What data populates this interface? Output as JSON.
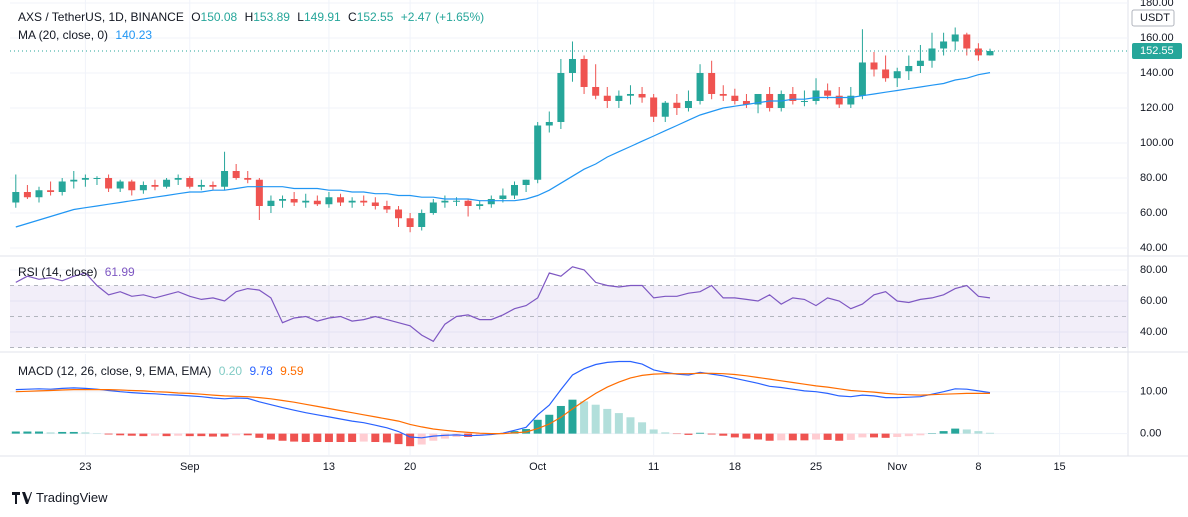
{
  "chart_data": [
    {
      "type": "candlestick",
      "title": "AXS / TetherUS, 1D, BINANCE",
      "unit": "USDT",
      "ohlc_labels": [
        "O",
        "H",
        "L",
        "C"
      ],
      "change": {
        "value": 2.47,
        "label": "+2.47"
      },
      "change_percent": {
        "value": 1.65,
        "label": "(+1.65%)"
      },
      "colors": {
        "up": "#26a69a",
        "down": "#ef5350"
      },
      "open": [
        66,
        72,
        69,
        73,
        72,
        78,
        79,
        80,
        80,
        74,
        78,
        73,
        76,
        75,
        79,
        80,
        75,
        76,
        75,
        84,
        80,
        79,
        64,
        67,
        68,
        66,
        67,
        65,
        69,
        66,
        67,
        66,
        64,
        62,
        57,
        52,
        60,
        66,
        67,
        67,
        64,
        65,
        68,
        70,
        76,
        79,
        110,
        112,
        140,
        148,
        132,
        127,
        124,
        127,
        128,
        126,
        115,
        123,
        120,
        124,
        140,
        128,
        127,
        124,
        122,
        128,
        120,
        128,
        124,
        124,
        130,
        127,
        122,
        127,
        146,
        142,
        137,
        141,
        144,
        147,
        154,
        158,
        162,
        154,
        150.08
      ],
      "high": [
        82,
        76,
        75,
        78,
        80,
        84,
        82,
        81,
        82,
        79,
        79,
        78,
        79,
        80,
        82,
        81,
        79,
        78,
        95,
        88,
        84,
        80,
        70,
        70,
        72,
        71,
        70,
        72,
        71,
        69,
        70,
        69,
        67,
        64,
        60,
        62,
        68,
        70,
        69,
        68,
        67,
        70,
        74,
        78,
        79,
        112,
        118,
        148,
        158,
        150,
        145,
        132,
        130,
        133,
        132,
        128,
        124,
        128,
        130,
        145,
        147,
        133,
        131,
        128,
        128,
        132,
        130,
        132,
        130,
        137,
        134,
        132,
        132,
        165,
        152,
        150,
        143,
        150,
        156,
        163,
        163,
        166,
        163,
        157,
        153.89
      ],
      "low": [
        63,
        68,
        66,
        70,
        70,
        74,
        75,
        76,
        72,
        72,
        70,
        71,
        73,
        74,
        76,
        74,
        73,
        73,
        73,
        79,
        77,
        56,
        60,
        63,
        64,
        63,
        64,
        63,
        64,
        63,
        64,
        62,
        60,
        52,
        49,
        50,
        59,
        63,
        64,
        58,
        62,
        63,
        66,
        68,
        72,
        77,
        106,
        108,
        135,
        128,
        125,
        120,
        120,
        122,
        123,
        112,
        112,
        116,
        118,
        122,
        125,
        124,
        122,
        120,
        117,
        118,
        118,
        122,
        121,
        122,
        125,
        120,
        120,
        125,
        138,
        135,
        132,
        136,
        140,
        143,
        150,
        153,
        150,
        147,
        149.91
      ],
      "close": [
        72,
        69,
        73,
        72,
        78,
        79,
        80,
        80,
        74,
        78,
        73,
        76,
        75,
        79,
        80,
        75,
        76,
        75,
        84,
        80,
        79,
        64,
        67,
        68,
        66,
        67,
        65,
        69,
        66,
        67,
        66,
        64,
        62,
        57,
        52,
        60,
        66,
        67,
        67,
        64,
        65,
        68,
        70,
        76,
        79,
        110,
        112,
        140,
        148,
        132,
        127,
        124,
        127,
        128,
        126,
        115,
        123,
        120,
        124,
        140,
        128,
        127,
        124,
        122,
        128,
        120,
        128,
        124,
        124,
        130,
        127,
        122,
        127,
        146,
        142,
        137,
        141,
        144,
        147,
        154,
        158,
        162,
        154,
        150.08,
        152.55
      ],
      "series": [
        {
          "name": "MA (20, close, 0)",
          "color": "#2196f3",
          "values": [
            52,
            54,
            56,
            58,
            60,
            62,
            63,
            64,
            65,
            66,
            67,
            68,
            69,
            70,
            71,
            72,
            72,
            73,
            73,
            74,
            75,
            75,
            75,
            75,
            74,
            74,
            74,
            73,
            73,
            72,
            72,
            71,
            71,
            70,
            70,
            69,
            69,
            68,
            68,
            68,
            67,
            67,
            67,
            67,
            68,
            70,
            73,
            77,
            81,
            85,
            88,
            92,
            95,
            98,
            101,
            104,
            107,
            110,
            113,
            116,
            118,
            120,
            121,
            122,
            123,
            124,
            124,
            125,
            125,
            126,
            126,
            126,
            126,
            127,
            128,
            129,
            130,
            131,
            132,
            133,
            134,
            136,
            137,
            139,
            140.23
          ]
        }
      ],
      "xlim": [
        -0.5,
        95.9
      ],
      "ylim": [
        36,
        181.7
      ],
      "yticks": [
        {
          "value": 40,
          "label": "40.00"
        },
        {
          "value": 60,
          "label": "60.00"
        },
        {
          "value": 80,
          "label": "80.00"
        },
        {
          "value": 100,
          "label": "100.00"
        },
        {
          "value": 120,
          "label": "120.00"
        },
        {
          "value": 140,
          "label": "140.00"
        },
        {
          "value": 160,
          "label": "160.00"
        },
        {
          "value": 180,
          "label": "180.00"
        }
      ],
      "grid": true
    },
    {
      "type": "line",
      "title": "RSI (14, close)",
      "series": [
        {
          "color": "#7e57c2",
          "values": [
            72,
            76,
            74,
            75,
            73,
            76,
            78,
            70,
            64,
            66,
            63,
            64,
            62,
            64,
            66,
            63,
            61,
            62,
            60,
            66,
            68,
            67,
            62,
            46,
            49,
            50,
            47,
            49,
            50,
            47,
            48,
            50,
            48,
            46,
            44,
            38,
            34,
            45,
            50,
            51,
            48,
            48,
            51,
            55,
            57,
            62,
            78,
            76,
            82,
            80,
            72,
            70,
            69,
            70,
            70,
            62,
            63,
            63,
            65,
            66,
            70,
            62,
            62,
            61,
            60,
            64,
            58,
            62,
            61,
            57,
            62,
            60,
            55,
            58,
            64,
            66,
            60,
            59,
            61,
            62,
            64,
            68,
            70,
            63,
            61.99
          ]
        }
      ],
      "bands": [
        70,
        50,
        30
      ],
      "band_color": "#7e57c2",
      "xlim": [
        -0.5,
        95.9
      ],
      "ylim": [
        28.4,
        87.7
      ],
      "yticks": [
        {
          "value": 40,
          "label": "40.00"
        },
        {
          "value": 60,
          "label": "60.00"
        },
        {
          "value": 80,
          "label": "80.00"
        }
      ],
      "grid": true
    },
    {
      "type": "line",
      "title": "MACD (12, 26, close, 9, EMA, EMA)",
      "legend_values": [
        {
          "value": 0.2,
          "label": "0.20"
        },
        9.78,
        9.59
      ],
      "series": [
        {
          "color": "#2962ff",
          "values": [
            10.5,
            10.6,
            10.7,
            10.6,
            10.8,
            10.9,
            10.8,
            10.6,
            10.3,
            10.0,
            9.8,
            9.6,
            9.5,
            9.3,
            9.2,
            9.0,
            8.8,
            8.5,
            8.3,
            8.5,
            8.4,
            7.6,
            6.9,
            6.2,
            5.6,
            5.0,
            4.5,
            4.0,
            3.5,
            3.0,
            2.6,
            2.0,
            1.4,
            0.5,
            -0.8,
            -1.0,
            -0.6,
            -0.4,
            -0.3,
            -0.5,
            -0.4,
            -0.2,
            0.1,
            0.8,
            1.5,
            4.5,
            6.8,
            10.5,
            14.0,
            15.5,
            16.5,
            17.0,
            17.2,
            17.2,
            16.6,
            15.2,
            14.6,
            14.2,
            14.0,
            14.6,
            14.2,
            13.8,
            13.2,
            12.6,
            12.0,
            11.3,
            11.0,
            10.6,
            10.2,
            10.0,
            9.6,
            9.0,
            8.8,
            9.2,
            9.0,
            8.6,
            8.6,
            8.7,
            8.8,
            9.4,
            10.0,
            10.7,
            10.6,
            10.2,
            9.78
          ]
        },
        {
          "color": "#ff6d00",
          "values": [
            10.0,
            10.1,
            10.2,
            10.3,
            10.4,
            10.5,
            10.5,
            10.5,
            10.5,
            10.4,
            10.3,
            10.2,
            10.0,
            9.9,
            9.7,
            9.6,
            9.4,
            9.2,
            9.0,
            8.9,
            8.8,
            8.6,
            8.3,
            7.9,
            7.5,
            7.0,
            6.5,
            6.0,
            5.5,
            5.0,
            4.5,
            4.0,
            3.5,
            3.0,
            2.2,
            1.6,
            1.1,
            0.8,
            0.5,
            0.3,
            0.1,
            0.0,
            0.0,
            0.2,
            0.4,
            1.2,
            2.3,
            3.9,
            5.9,
            7.8,
            9.6,
            11.1,
            12.3,
            13.3,
            13.9,
            14.2,
            14.3,
            14.3,
            14.3,
            14.4,
            14.4,
            14.3,
            14.1,
            13.8,
            13.4,
            13.0,
            12.6,
            12.2,
            11.8,
            11.4,
            11.1,
            10.7,
            10.3,
            10.1,
            9.9,
            9.6,
            9.4,
            9.3,
            9.2,
            9.3,
            9.4,
            9.5,
            9.6,
            9.6,
            9.59
          ]
        }
      ],
      "histogram": {
        "colors": {
          "up_strong": "#26a69a",
          "up_weak": "#b2dfdb",
          "down_weak": "#ffcdd2",
          "down_strong": "#ef5350"
        },
        "values": [
          0.5,
          0.5,
          0.5,
          0.3,
          0.4,
          0.4,
          0.3,
          0.1,
          -0.2,
          -0.4,
          -0.5,
          -0.6,
          -0.5,
          -0.6,
          -0.5,
          -0.6,
          -0.6,
          -0.7,
          -0.7,
          -0.4,
          -0.4,
          -1.0,
          -1.4,
          -1.7,
          -1.9,
          -2.0,
          -2.0,
          -2.0,
          -2.0,
          -2.0,
          -1.9,
          -2.0,
          -2.1,
          -2.5,
          -3.0,
          -2.6,
          -1.7,
          -1.2,
          -0.8,
          -0.8,
          -0.5,
          -0.2,
          0.1,
          0.6,
          1.1,
          3.3,
          4.5,
          6.6,
          8.1,
          7.7,
          6.9,
          5.9,
          4.9,
          3.9,
          2.7,
          1.0,
          0.3,
          -0.1,
          -0.3,
          0.2,
          -0.2,
          -0.5,
          -0.9,
          -1.2,
          -1.4,
          -1.7,
          -1.6,
          -1.6,
          -1.6,
          -1.4,
          -1.5,
          -1.7,
          -1.5,
          -0.9,
          -0.9,
          -1.0,
          -0.8,
          -0.6,
          -0.4,
          0.1,
          0.6,
          1.2,
          1.0,
          0.6,
          0.2
        ]
      },
      "xlim": [
        -0.5,
        95.9
      ],
      "ylim": [
        -5.1,
        19
      ],
      "yticks": [
        {
          "value": 0,
          "label": "0.00"
        },
        {
          "value": 10,
          "label": "10.00"
        }
      ],
      "xticks": [
        {
          "value": 6,
          "label": "23"
        },
        {
          "value": 15,
          "label": "Sep"
        },
        {
          "value": 27,
          "label": "13"
        },
        {
          "value": 34,
          "label": "20"
        },
        {
          "value": 45,
          "label": "Oct"
        },
        {
          "value": 55,
          "label": "11"
        },
        {
          "value": 62,
          "label": "18"
        },
        {
          "value": 69,
          "label": "25"
        },
        {
          "value": 76,
          "label": "Nov"
        },
        {
          "value": 83,
          "label": "8"
        },
        {
          "value": 90,
          "label": "15"
        }
      ],
      "grid": true
    }
  ],
  "footer": {
    "brand": "TradingView"
  }
}
